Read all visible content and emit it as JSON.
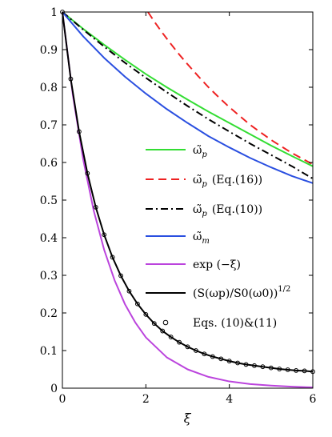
{
  "chart_data": {
    "type": "line",
    "xlabel": "ξ",
    "ylabel": "",
    "xlim": [
      0,
      6
    ],
    "ylim": [
      0,
      1
    ],
    "x_ticks": [
      0,
      2,
      4,
      6
    ],
    "x_tick_labels": [
      "0",
      "2",
      "4",
      "6"
    ],
    "y_ticks": [
      0,
      0.1,
      0.2,
      0.3,
      0.4,
      0.5,
      0.6,
      0.7,
      0.8,
      0.9,
      1
    ],
    "y_tick_labels": [
      "0",
      "0.1",
      "0.2",
      "0.3",
      "0.4",
      "0.5",
      "0.6",
      "0.7",
      "0.8",
      "0.9",
      "1"
    ],
    "grid": false,
    "legend_position": "right",
    "series": [
      {
        "name": "ω̃_p",
        "legend_main": "ω̃",
        "legend_sub": "p",
        "legend_extra": "",
        "color": "#33dd33",
        "style": "solid",
        "x": [
          0,
          0.5,
          1,
          1.5,
          2,
          2.5,
          3,
          3.5,
          4,
          4.5,
          5,
          5.5,
          6
        ],
        "y": [
          1,
          0.955,
          0.913,
          0.873,
          0.835,
          0.8,
          0.767,
          0.735,
          0.705,
          0.675,
          0.645,
          0.617,
          0.59
        ]
      },
      {
        "name": "ω̃_p (Eq.(16))",
        "legend_main": "ω̃",
        "legend_sub": "p",
        "legend_extra": "(Eq.(16))",
        "color": "#ee2222",
        "style": "dashed",
        "x": [
          2.05,
          2.2,
          2.4,
          2.6,
          2.8,
          3,
          3.25,
          3.5,
          3.75,
          4,
          4.5,
          5,
          5.5,
          6
        ],
        "y": [
          1,
          0.975,
          0.944,
          0.915,
          0.887,
          0.861,
          0.83,
          0.8,
          0.773,
          0.747,
          0.7,
          0.66,
          0.625,
          0.595
        ]
      },
      {
        "name": "ω̃_p (Eq.(10))",
        "legend_main": "ω̃",
        "legend_sub": "p",
        "legend_extra": "(Eq.(10))",
        "color": "#000000",
        "style": "dashdot",
        "x": [
          0,
          0.5,
          1,
          1.5,
          2,
          2.5,
          3,
          3.5,
          4,
          4.5,
          5,
          5.5,
          6
        ],
        "y": [
          1,
          0.953,
          0.908,
          0.865,
          0.825,
          0.787,
          0.75,
          0.715,
          0.682,
          0.65,
          0.62,
          0.59,
          0.557
        ]
      },
      {
        "name": "ω̃_m",
        "legend_main": "ω̃",
        "legend_sub": "m",
        "legend_extra": "",
        "color": "#2a4fe0",
        "style": "solid",
        "x": [
          0,
          0.5,
          1,
          1.5,
          2,
          2.5,
          3,
          3.5,
          4,
          4.5,
          5,
          5.5,
          6
        ],
        "y": [
          1,
          0.935,
          0.878,
          0.828,
          0.783,
          0.742,
          0.705,
          0.67,
          0.64,
          0.612,
          0.587,
          0.564,
          0.545
        ]
      },
      {
        "name": "exp(−ξ)",
        "legend_main": "exp (−ξ)",
        "legend_sub": "",
        "legend_extra": "",
        "color": "#bb44dd",
        "style": "solid",
        "x": [
          0,
          0.25,
          0.5,
          0.75,
          1,
          1.25,
          1.5,
          1.75,
          2,
          2.5,
          3,
          3.5,
          4,
          4.5,
          5,
          5.5,
          6
        ],
        "y": [
          1,
          0.779,
          0.607,
          0.472,
          0.368,
          0.287,
          0.223,
          0.174,
          0.135,
          0.082,
          0.05,
          0.03,
          0.018,
          0.011,
          0.007,
          0.004,
          0.002
        ]
      },
      {
        "name": "(S(ω_p)/S_0(ω_0))^(1/2)",
        "legend_main": "(S(ωp)/S0(ω0))",
        "legend_sub": "",
        "legend_extra": "1/2",
        "color": "#000000",
        "style": "solid",
        "x": [
          0,
          0.2,
          0.4,
          0.6,
          0.8,
          1,
          1.2,
          1.4,
          1.6,
          1.8,
          2,
          2.2,
          2.4,
          2.6,
          2.8,
          3,
          3.2,
          3.4,
          3.6,
          3.8,
          4,
          4.2,
          4.4,
          4.6,
          4.8,
          5,
          5.2,
          5.4,
          5.6,
          5.8,
          6
        ],
        "y": [
          1,
          0.822,
          0.682,
          0.571,
          0.481,
          0.408,
          0.348,
          0.299,
          0.258,
          0.224,
          0.196,
          0.172,
          0.152,
          0.136,
          0.122,
          0.11,
          0.1,
          0.091,
          0.084,
          0.078,
          0.072,
          0.067,
          0.063,
          0.06,
          0.057,
          0.054,
          0.051,
          0.049,
          0.047,
          0.046,
          0.044
        ]
      },
      {
        "name": "Eqs. (10)&(11)",
        "legend_main": "Eqs. (10)&(11)",
        "legend_sub": "",
        "legend_extra": "",
        "color": "#000000",
        "style": "markers",
        "x": [
          0,
          0.2,
          0.4,
          0.6,
          0.8,
          1,
          1.2,
          1.4,
          1.6,
          1.8,
          2,
          2.2,
          2.4,
          2.6,
          2.8,
          3,
          3.2,
          3.4,
          3.6,
          3.8,
          4,
          4.2,
          4.4,
          4.6,
          4.8,
          5,
          5.2,
          5.4,
          5.6,
          5.8,
          6
        ],
        "y": [
          1,
          0.822,
          0.682,
          0.571,
          0.481,
          0.408,
          0.348,
          0.299,
          0.258,
          0.224,
          0.196,
          0.172,
          0.152,
          0.136,
          0.122,
          0.11,
          0.1,
          0.091,
          0.084,
          0.078,
          0.072,
          0.067,
          0.063,
          0.06,
          0.057,
          0.054,
          0.051,
          0.049,
          0.047,
          0.046,
          0.044
        ]
      }
    ]
  }
}
